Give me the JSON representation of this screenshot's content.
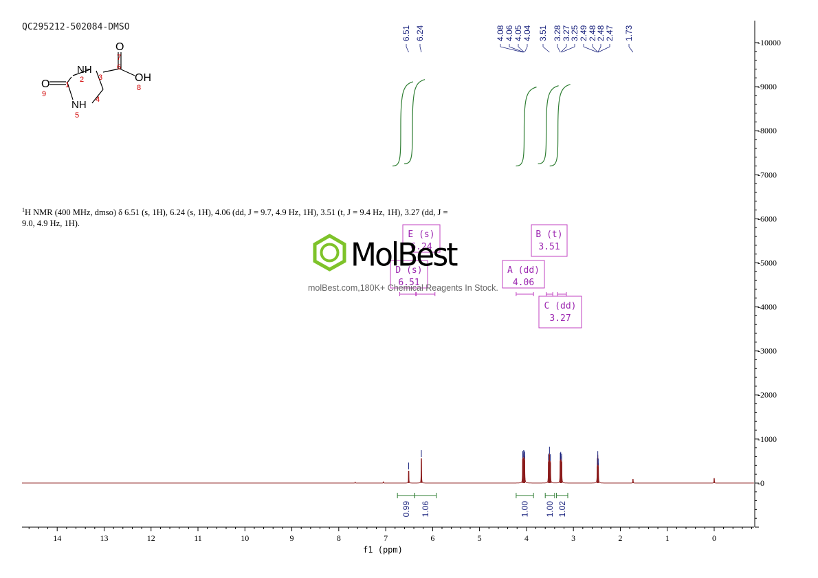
{
  "sample_id": "QC295212-502084-DMSO",
  "nmr_description": {
    "prefix_sup": "1",
    "text": "H NMR (400 MHz, dmso) δ 6.51 (s, 1H), 6.24 (s, 1H), 4.06 (dd, J = 9.7, 4.9 Hz, 1H), 3.51 (t, J = 9.4 Hz, 1H), 3.27 (dd, J = 9.0, 4.9 Hz, 1H)."
  },
  "watermark": {
    "name": "MolBest",
    "tagline": "molBest.com,180K+ Chemical Reagents In Stock."
  },
  "structure": {
    "atoms": [
      "O",
      "NH",
      "NH",
      "O",
      "OH"
    ],
    "numbers": [
      "1",
      "2",
      "3",
      "4",
      "5",
      "6",
      "7",
      "8",
      "9"
    ]
  },
  "colors": {
    "spectrum": "#8b1a1a",
    "integral": "#2e7d32",
    "peak_label": "#1a237e",
    "multiplet_box": "#c040c0",
    "atom_number": "#d00000"
  },
  "chart_data": {
    "type": "line",
    "title": "",
    "xlabel": "f1 (ppm)",
    "ylabel": "",
    "xlim": [
      14.75,
      -0.85
    ],
    "x_reversed": true,
    "ylim": [
      -1000,
      10500
    ],
    "x_ticks": [
      "14",
      "13",
      "12",
      "11",
      "10",
      "9",
      "8",
      "7",
      "6",
      "5",
      "4",
      "3",
      "2",
      "1",
      "0"
    ],
    "y_ticks": [
      "10000",
      "9000",
      "8000",
      "7000",
      "6000",
      "5000",
      "4000",
      "3000",
      "2000",
      "1000",
      "0"
    ],
    "peaks": [
      {
        "ppm": 7.65,
        "height": 20
      },
      {
        "ppm": 7.05,
        "height": 25
      },
      {
        "ppm": 6.51,
        "height": 280
      },
      {
        "ppm": 6.24,
        "height": 560
      },
      {
        "ppm": 4.08,
        "height": 540
      },
      {
        "ppm": 4.06,
        "height": 560
      },
      {
        "ppm": 4.05,
        "height": 550
      },
      {
        "ppm": 4.04,
        "height": 520
      },
      {
        "ppm": 3.53,
        "height": 480
      },
      {
        "ppm": 3.51,
        "height": 640
      },
      {
        "ppm": 3.49,
        "height": 470
      },
      {
        "ppm": 3.28,
        "height": 500
      },
      {
        "ppm": 3.27,
        "height": 520
      },
      {
        "ppm": 3.25,
        "height": 480
      },
      {
        "ppm": 2.49,
        "height": 380
      },
      {
        "ppm": 2.48,
        "height": 540
      },
      {
        "ppm": 2.47,
        "height": 370
      },
      {
        "ppm": 1.73,
        "height": 90
      },
      {
        "ppm": 0.0,
        "height": 110
      }
    ],
    "peak_labels": [
      {
        "text": "6.51",
        "ppm": 6.51
      },
      {
        "text": "6.24",
        "ppm": 6.24
      },
      {
        "text": "4.08",
        "ppm": 4.08
      },
      {
        "text": "4.06",
        "ppm": 4.06
      },
      {
        "text": "4.05",
        "ppm": 4.05
      },
      {
        "text": "4.04",
        "ppm": 4.04
      },
      {
        "text": "3.51",
        "ppm": 3.51
      },
      {
        "text": "3.28",
        "ppm": 3.28
      },
      {
        "text": "3.27",
        "ppm": 3.27
      },
      {
        "text": "3.25",
        "ppm": 3.25
      },
      {
        "text": "2.49",
        "ppm": 2.49
      },
      {
        "text": "2.48",
        "ppm": 2.48
      },
      {
        "text": "2.48",
        "ppm": 2.48
      },
      {
        "text": "2.47",
        "ppm": 2.47
      },
      {
        "text": "1.73",
        "ppm": 1.73
      }
    ],
    "integrals": [
      {
        "from": 6.75,
        "to": 6.38,
        "value": "0.99"
      },
      {
        "from": 6.38,
        "to": 5.92,
        "value": "1.06"
      },
      {
        "from": 4.22,
        "to": 3.85,
        "value": "1.00"
      },
      {
        "from": 3.6,
        "to": 3.4,
        "value": "1.00"
      },
      {
        "from": 3.36,
        "to": 3.12,
        "value": "1.02"
      }
    ],
    "multiplets": [
      {
        "label": "E (s)",
        "shift": "6.24",
        "ppm": 6.24
      },
      {
        "label": "D (s)",
        "shift": "6.51",
        "ppm": 6.51
      },
      {
        "label": "A (dd)",
        "shift": "4.06",
        "ppm": 4.06
      },
      {
        "label": "B (t)",
        "shift": "3.51",
        "ppm": 3.51
      },
      {
        "label": "C (dd)",
        "shift": "3.27",
        "ppm": 3.27
      }
    ]
  }
}
